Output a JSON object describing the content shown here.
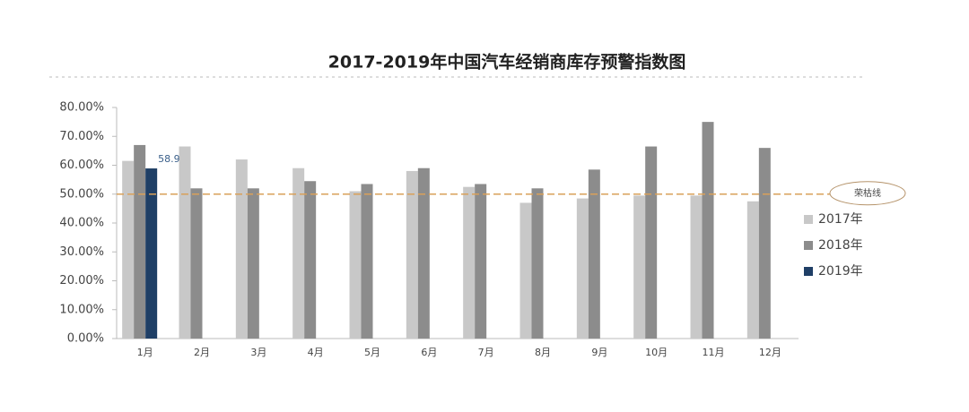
{
  "chart_data": {
    "type": "bar",
    "title": "2017-2019年中国汽车经销商库存预警指数图",
    "categories": [
      "1月",
      "2月",
      "3月",
      "4月",
      "5月",
      "6月",
      "7月",
      "8月",
      "9月",
      "10月",
      "11月",
      "12月"
    ],
    "series": [
      {
        "name": "2017年",
        "color": "#c8c8c8",
        "values": [
          61.5,
          66.5,
          62,
          59,
          51,
          58,
          52.5,
          47,
          48.5,
          49.5,
          49.5,
          47.5
        ]
      },
      {
        "name": "2018年",
        "color": "#8c8c8c",
        "values": [
          67,
          52,
          52,
          54.5,
          53.5,
          59,
          53.5,
          52,
          58.5,
          66.5,
          75,
          66
        ]
      },
      {
        "name": "2019年",
        "color": "#1f3f66",
        "values": [
          58.9,
          null,
          null,
          null,
          null,
          null,
          null,
          null,
          null,
          null,
          null,
          null
        ],
        "value_labels": [
          "58.9%",
          null,
          null,
          null,
          null,
          null,
          null,
          null,
          null,
          null,
          null,
          null
        ]
      }
    ],
    "ylim": [
      0,
      80
    ],
    "yticks": [
      {
        "value": 0,
        "label": "0.00%"
      },
      {
        "value": 10,
        "label": "10.00%"
      },
      {
        "value": 20,
        "label": "20.00%"
      },
      {
        "value": 30,
        "label": "30.00%"
      },
      {
        "value": 40,
        "label": "40.00%"
      },
      {
        "value": 50,
        "label": "50.00%"
      },
      {
        "value": 60,
        "label": "60.00%"
      },
      {
        "value": 70,
        "label": "70.00%"
      },
      {
        "value": 80,
        "label": "80.00%"
      }
    ],
    "reference_line": {
      "value": 50,
      "label": "荣枯线",
      "color": "#d9a15a"
    },
    "legend": "right"
  }
}
